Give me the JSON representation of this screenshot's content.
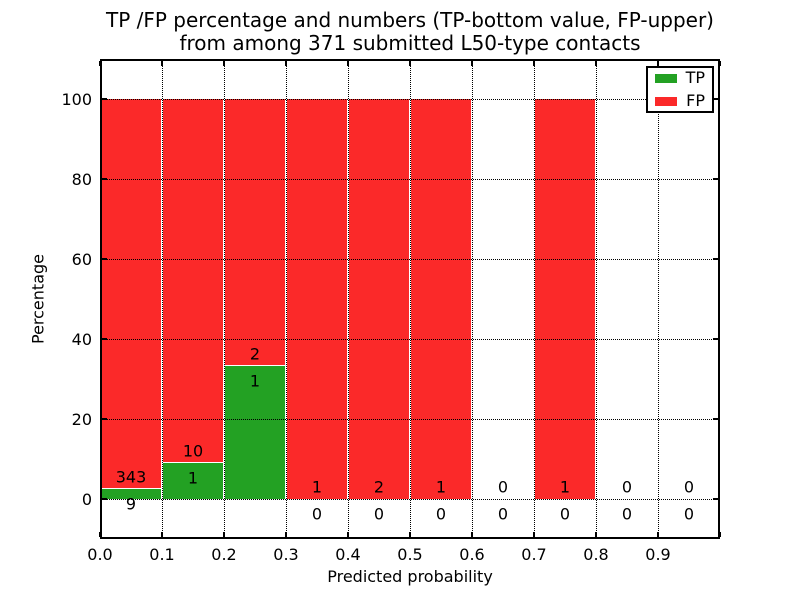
{
  "title": {
    "line1": "TP /FP percentage and numbers (TP-bottom value, FP-upper)",
    "line2": "from among 371 submitted L50-type contacts"
  },
  "chart_data": {
    "type": "bar",
    "stacked": true,
    "title": "TP /FP percentage and numbers (TP-bottom value, FP-upper) from among 371 submitted L50-type contacts",
    "xlabel": "Predicted probability",
    "ylabel": "Percentage",
    "xlim": [
      0.0,
      1.0
    ],
    "ylim": [
      -10,
      110
    ],
    "grid": "dotted",
    "x_tick_labels": [
      "0.0",
      "0.1",
      "0.2",
      "0.3",
      "0.4",
      "0.5",
      "0.6",
      "0.7",
      "0.8",
      "0.9"
    ],
    "y_tick_values": [
      0,
      20,
      40,
      60,
      80,
      100
    ],
    "legend": {
      "position": "upper right",
      "entries": [
        {
          "label": "TP",
          "color": "#23a123"
        },
        {
          "label": "FP",
          "color": "#fb2929"
        }
      ]
    },
    "colors": {
      "tp": "#23a123",
      "fp": "#fb2929"
    },
    "bins": [
      {
        "x_start": 0.0,
        "x_end": 0.1,
        "tp": 9,
        "fp": 343,
        "tp_pct": 2.56,
        "fp_pct": 97.44
      },
      {
        "x_start": 0.1,
        "x_end": 0.2,
        "tp": 1,
        "fp": 10,
        "tp_pct": 9.09,
        "fp_pct": 90.91
      },
      {
        "x_start": 0.2,
        "x_end": 0.3,
        "tp": 1,
        "fp": 2,
        "tp_pct": 33.33,
        "fp_pct": 66.67
      },
      {
        "x_start": 0.3,
        "x_end": 0.4,
        "tp": 0,
        "fp": 1,
        "tp_pct": 0,
        "fp_pct": 100
      },
      {
        "x_start": 0.4,
        "x_end": 0.5,
        "tp": 0,
        "fp": 2,
        "tp_pct": 0,
        "fp_pct": 100
      },
      {
        "x_start": 0.5,
        "x_end": 0.6,
        "tp": 0,
        "fp": 1,
        "tp_pct": 0,
        "fp_pct": 100
      },
      {
        "x_start": 0.6,
        "x_end": 0.7,
        "tp": 0,
        "fp": 0,
        "tp_pct": 0,
        "fp_pct": 0
      },
      {
        "x_start": 0.7,
        "x_end": 0.8,
        "tp": 0,
        "fp": 1,
        "tp_pct": 0,
        "fp_pct": 100
      },
      {
        "x_start": 0.8,
        "x_end": 0.9,
        "tp": 0,
        "fp": 0,
        "tp_pct": 0,
        "fp_pct": 0
      },
      {
        "x_start": 0.9,
        "x_end": 1.0,
        "tp": 0,
        "fp": 0,
        "tp_pct": 0,
        "fp_pct": 0
      }
    ]
  }
}
